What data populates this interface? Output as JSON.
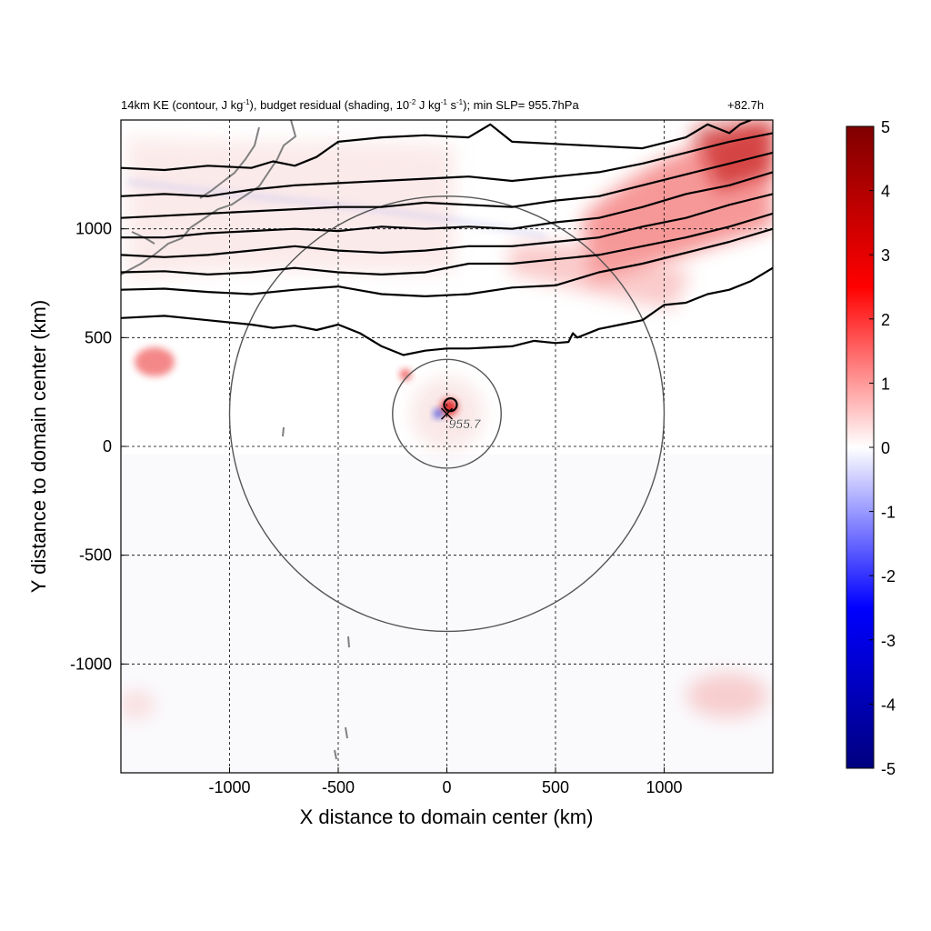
{
  "title": {
    "part1": "14km KE (contour, J kg",
    "sup1": "-1",
    "part2": "), budget residual (shading, 10",
    "sup2": "-2",
    "part3": " J kg",
    "sup3": "-1",
    "part4": " s",
    "sup4": "-1",
    "part5": "); min SLP= 955.7hPa",
    "time": "+82.7h"
  },
  "chart_data": {
    "type": "heatmap",
    "xlabel": "X distance to domain center (km)",
    "ylabel": "Y distance to domain center (km)",
    "xlim": [
      -1500,
      1500
    ],
    "ylim": [
      -1500,
      1500
    ],
    "xticks": [
      -1000,
      -500,
      0,
      500,
      1000
    ],
    "yticks": [
      -1000,
      -500,
      0,
      500,
      1000
    ],
    "grid": true,
    "colorbar": {
      "ticks": [
        5,
        4,
        3,
        2,
        1,
        0,
        -1,
        -2,
        -3,
        -4,
        -5
      ],
      "range": [
        -5,
        5
      ],
      "colors": [
        "#00007f",
        "#0000ff",
        "#ffffff",
        "#ff0000",
        "#7f0000"
      ]
    },
    "storm_center": {
      "x": 0,
      "y": 150,
      "label": "955.7"
    },
    "range_rings_km": [
      250,
      1000
    ],
    "ke_contours": [
      {
        "x": [
          -1500,
          -1300,
          -1100,
          -900,
          -800,
          -700,
          -600,
          -500,
          -400,
          -300,
          -200,
          -100,
          0,
          100,
          200,
          300,
          400,
          500,
          560,
          580,
          600,
          700,
          800,
          900,
          1000,
          1100,
          1200,
          1300,
          1400,
          1500
        ],
        "y": [
          590,
          600,
          580,
          560,
          545,
          555,
          535,
          560,
          520,
          460,
          420,
          440,
          450,
          450,
          455,
          460,
          485,
          475,
          480,
          520,
          500,
          540,
          560,
          580,
          650,
          660,
          700,
          720,
          760,
          820
        ]
      },
      {
        "x": [
          -1500,
          -1300,
          -1100,
          -900,
          -700,
          -500,
          -300,
          -100,
          100,
          300,
          500,
          700,
          900,
          1100,
          1300,
          1500
        ],
        "y": [
          720,
          725,
          710,
          700,
          720,
          735,
          700,
          690,
          700,
          730,
          740,
          800,
          840,
          890,
          940,
          1000
        ]
      },
      {
        "x": [
          -1500,
          -1300,
          -1100,
          -900,
          -700,
          -500,
          -300,
          -100,
          100,
          300,
          500,
          700,
          900,
          1100,
          1300,
          1500
        ],
        "y": [
          800,
          805,
          790,
          800,
          820,
          800,
          790,
          800,
          840,
          840,
          860,
          880,
          920,
          960,
          1010,
          1070
        ]
      },
      {
        "x": [
          -1500,
          -1300,
          -1100,
          -900,
          -700,
          -500,
          -300,
          -100,
          100,
          300,
          500,
          700,
          900,
          1100,
          1300,
          1500
        ],
        "y": [
          880,
          870,
          880,
          900,
          920,
          900,
          890,
          900,
          920,
          920,
          940,
          960,
          1010,
          1050,
          1110,
          1160
        ]
      },
      {
        "x": [
          -1500,
          -1300,
          -1100,
          -900,
          -700,
          -500,
          -300,
          -100,
          100,
          300,
          500,
          700,
          900,
          1100,
          1300,
          1500
        ],
        "y": [
          960,
          960,
          980,
          990,
          1000,
          990,
          1010,
          1000,
          1010,
          1000,
          1030,
          1050,
          1100,
          1160,
          1200,
          1260
        ]
      },
      {
        "x": [
          -1500,
          -1300,
          -1100,
          -900,
          -700,
          -500,
          -300,
          -100,
          100,
          300,
          500,
          700,
          900,
          1100,
          1300,
          1500
        ],
        "y": [
          1050,
          1060,
          1070,
          1080,
          1090,
          1100,
          1100,
          1120,
          1110,
          1100,
          1130,
          1150,
          1200,
          1250,
          1300,
          1350
        ]
      },
      {
        "x": [
          -1500,
          -1300,
          -1100,
          -900,
          -700,
          -500,
          -300,
          -100,
          100,
          300,
          500,
          700,
          900,
          1100,
          1300,
          1500
        ],
        "y": [
          1150,
          1160,
          1150,
          1180,
          1200,
          1210,
          1220,
          1230,
          1240,
          1220,
          1240,
          1260,
          1300,
          1350,
          1400,
          1440
        ]
      },
      {
        "x": [
          -1500,
          -1300,
          -1100,
          -900,
          -800,
          -700,
          -600,
          -500,
          -300,
          -100,
          100,
          200,
          300,
          500,
          700,
          900,
          1100,
          1200,
          1300,
          1350,
          1400
        ],
        "y": [
          1280,
          1270,
          1290,
          1280,
          1310,
          1290,
          1330,
          1400,
          1420,
          1430,
          1420,
          1480,
          1400,
          1390,
          1380,
          1370,
          1420,
          1480,
          1440,
          1480,
          1500
        ]
      }
    ]
  }
}
